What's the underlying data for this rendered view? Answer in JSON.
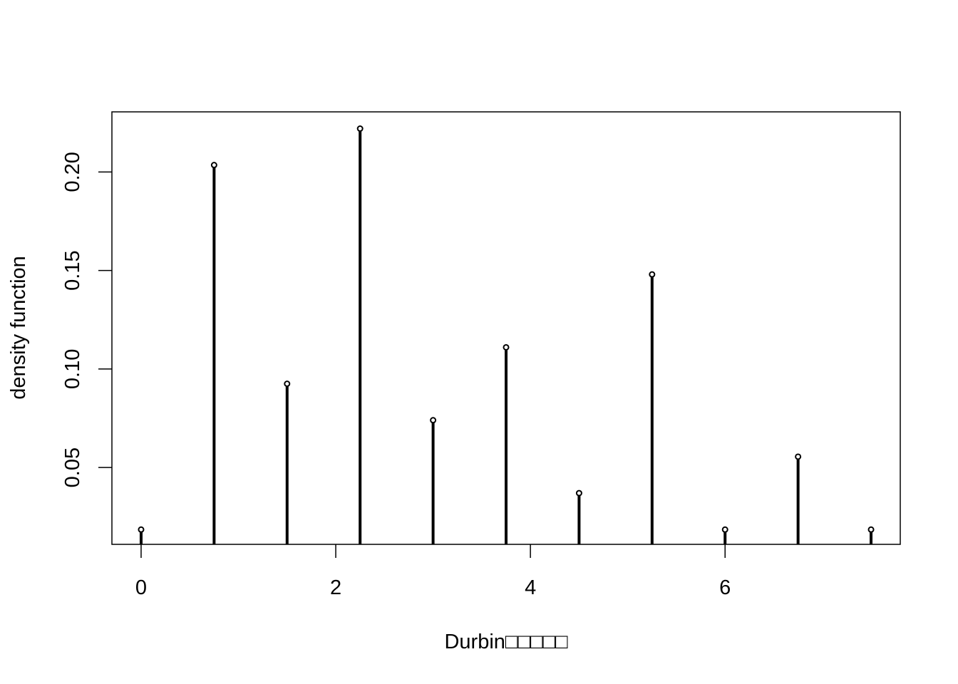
{
  "chart_data": {
    "type": "bar",
    "style": "stem",
    "xlabel": "Durbin",
    "xlabel_missing_glyphs": "□□□□□",
    "ylabel": "density function",
    "xlim": [
      -0.3,
      7.8
    ],
    "ylim": [
      0.011,
      0.2305
    ],
    "x_ticks": [
      0,
      2,
      4,
      6
    ],
    "x_tick_labels": [
      "0",
      "2",
      "4",
      "6"
    ],
    "y_ticks": [
      0.05,
      0.1,
      0.15,
      0.2
    ],
    "y_tick_labels": [
      "0.05",
      "0.10",
      "0.15",
      "0.20"
    ],
    "grid": false,
    "x": [
      0,
      0.75,
      1.5,
      2.25,
      3.0,
      3.75,
      4.5,
      5.25,
      6.0,
      6.75,
      7.5
    ],
    "values": [
      0.0185,
      0.2035,
      0.0925,
      0.222,
      0.074,
      0.111,
      0.037,
      0.148,
      0.0185,
      0.0555,
      0.0185
    ],
    "colors": {
      "line": "#000000",
      "background": "#ffffff"
    }
  }
}
